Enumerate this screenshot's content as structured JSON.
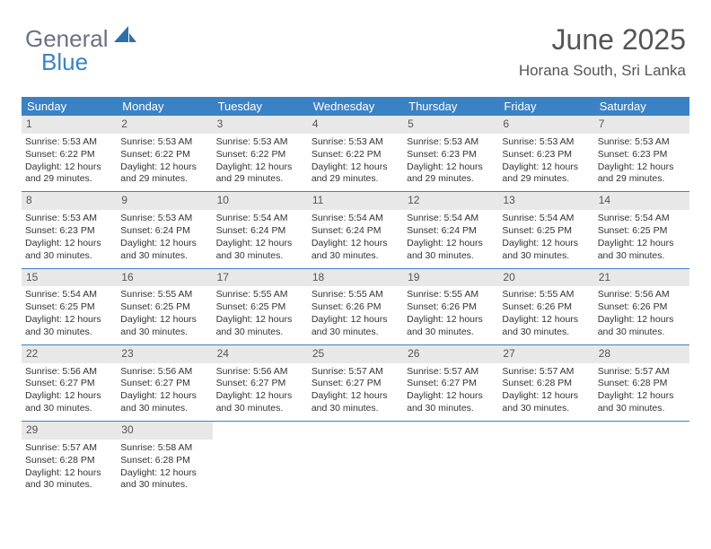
{
  "logo": {
    "word1": "General",
    "word2": "Blue",
    "icon_color": "#2f6fa8"
  },
  "header": {
    "month_title": "June 2025",
    "location": "Horana South, Sri Lanka"
  },
  "colors": {
    "header_bg": "#3b82c4",
    "header_text": "#ffffff",
    "daynum_bg": "#e8e8e8",
    "row_border": "#3b82c4",
    "body_text": "#333333"
  },
  "days_of_week": [
    "Sunday",
    "Monday",
    "Tuesday",
    "Wednesday",
    "Thursday",
    "Friday",
    "Saturday"
  ],
  "weeks": [
    [
      {
        "n": "1",
        "sr": "5:53 AM",
        "ss": "6:22 PM",
        "dl": "12 hours and 29 minutes."
      },
      {
        "n": "2",
        "sr": "5:53 AM",
        "ss": "6:22 PM",
        "dl": "12 hours and 29 minutes."
      },
      {
        "n": "3",
        "sr": "5:53 AM",
        "ss": "6:22 PM",
        "dl": "12 hours and 29 minutes."
      },
      {
        "n": "4",
        "sr": "5:53 AM",
        "ss": "6:22 PM",
        "dl": "12 hours and 29 minutes."
      },
      {
        "n": "5",
        "sr": "5:53 AM",
        "ss": "6:23 PM",
        "dl": "12 hours and 29 minutes."
      },
      {
        "n": "6",
        "sr": "5:53 AM",
        "ss": "6:23 PM",
        "dl": "12 hours and 29 minutes."
      },
      {
        "n": "7",
        "sr": "5:53 AM",
        "ss": "6:23 PM",
        "dl": "12 hours and 29 minutes."
      }
    ],
    [
      {
        "n": "8",
        "sr": "5:53 AM",
        "ss": "6:23 PM",
        "dl": "12 hours and 30 minutes."
      },
      {
        "n": "9",
        "sr": "5:53 AM",
        "ss": "6:24 PM",
        "dl": "12 hours and 30 minutes."
      },
      {
        "n": "10",
        "sr": "5:54 AM",
        "ss": "6:24 PM",
        "dl": "12 hours and 30 minutes."
      },
      {
        "n": "11",
        "sr": "5:54 AM",
        "ss": "6:24 PM",
        "dl": "12 hours and 30 minutes."
      },
      {
        "n": "12",
        "sr": "5:54 AM",
        "ss": "6:24 PM",
        "dl": "12 hours and 30 minutes."
      },
      {
        "n": "13",
        "sr": "5:54 AM",
        "ss": "6:25 PM",
        "dl": "12 hours and 30 minutes."
      },
      {
        "n": "14",
        "sr": "5:54 AM",
        "ss": "6:25 PM",
        "dl": "12 hours and 30 minutes."
      }
    ],
    [
      {
        "n": "15",
        "sr": "5:54 AM",
        "ss": "6:25 PM",
        "dl": "12 hours and 30 minutes."
      },
      {
        "n": "16",
        "sr": "5:55 AM",
        "ss": "6:25 PM",
        "dl": "12 hours and 30 minutes."
      },
      {
        "n": "17",
        "sr": "5:55 AM",
        "ss": "6:25 PM",
        "dl": "12 hours and 30 minutes."
      },
      {
        "n": "18",
        "sr": "5:55 AM",
        "ss": "6:26 PM",
        "dl": "12 hours and 30 minutes."
      },
      {
        "n": "19",
        "sr": "5:55 AM",
        "ss": "6:26 PM",
        "dl": "12 hours and 30 minutes."
      },
      {
        "n": "20",
        "sr": "5:55 AM",
        "ss": "6:26 PM",
        "dl": "12 hours and 30 minutes."
      },
      {
        "n": "21",
        "sr": "5:56 AM",
        "ss": "6:26 PM",
        "dl": "12 hours and 30 minutes."
      }
    ],
    [
      {
        "n": "22",
        "sr": "5:56 AM",
        "ss": "6:27 PM",
        "dl": "12 hours and 30 minutes."
      },
      {
        "n": "23",
        "sr": "5:56 AM",
        "ss": "6:27 PM",
        "dl": "12 hours and 30 minutes."
      },
      {
        "n": "24",
        "sr": "5:56 AM",
        "ss": "6:27 PM",
        "dl": "12 hours and 30 minutes."
      },
      {
        "n": "25",
        "sr": "5:57 AM",
        "ss": "6:27 PM",
        "dl": "12 hours and 30 minutes."
      },
      {
        "n": "26",
        "sr": "5:57 AM",
        "ss": "6:27 PM",
        "dl": "12 hours and 30 minutes."
      },
      {
        "n": "27",
        "sr": "5:57 AM",
        "ss": "6:28 PM",
        "dl": "12 hours and 30 minutes."
      },
      {
        "n": "28",
        "sr": "5:57 AM",
        "ss": "6:28 PM",
        "dl": "12 hours and 30 minutes."
      }
    ],
    [
      {
        "n": "29",
        "sr": "5:57 AM",
        "ss": "6:28 PM",
        "dl": "12 hours and 30 minutes."
      },
      {
        "n": "30",
        "sr": "5:58 AM",
        "ss": "6:28 PM",
        "dl": "12 hours and 30 minutes."
      },
      null,
      null,
      null,
      null,
      null
    ]
  ],
  "labels": {
    "sunrise": "Sunrise: ",
    "sunset": "Sunset: ",
    "daylight": "Daylight: "
  }
}
